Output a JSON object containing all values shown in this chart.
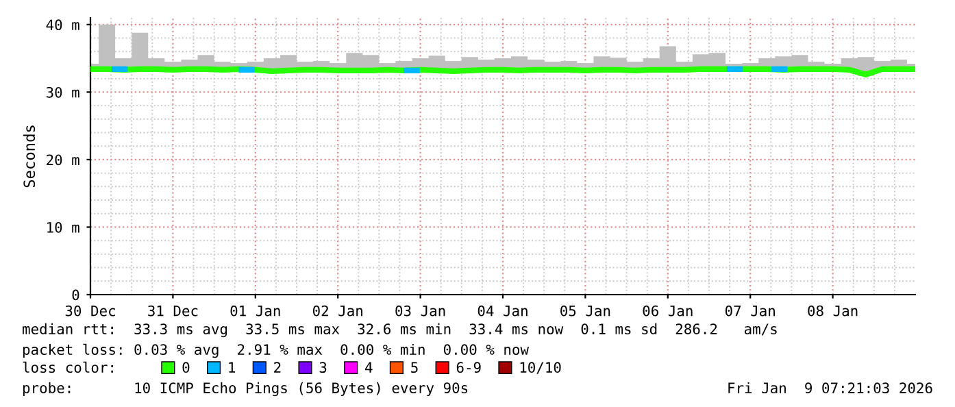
{
  "chart_data": {
    "type": "line",
    "ylabel": "Seconds",
    "xlim": [
      "2025-12-30T00:00",
      "2026-01-09T00:00"
    ],
    "xticks": [
      {
        "value": "2025-12-30T00:00",
        "label": "30 Dec"
      },
      {
        "value": "2025-12-31T00:00",
        "label": "31 Dec"
      },
      {
        "value": "2026-01-01T00:00",
        "label": "01 Jan"
      },
      {
        "value": "2026-01-02T00:00",
        "label": "02 Jan"
      },
      {
        "value": "2026-01-03T00:00",
        "label": "03 Jan"
      },
      {
        "value": "2026-01-04T00:00",
        "label": "04 Jan"
      },
      {
        "value": "2026-01-05T00:00",
        "label": "05 Jan"
      },
      {
        "value": "2026-01-06T00:00",
        "label": "06 Jan"
      },
      {
        "value": "2026-01-07T00:00",
        "label": "07 Jan"
      },
      {
        "value": "2026-01-08T00:00",
        "label": "08 Jan"
      }
    ],
    "ylim": [
      0,
      41
    ],
    "yticks": [
      0,
      {
        "value": 10,
        "label": "10 m"
      },
      {
        "value": 20,
        "label": "20 m"
      },
      {
        "value": 30,
        "label": "30 m"
      },
      {
        "value": 40,
        "label": "40 m"
      }
    ],
    "grid": true,
    "legend": "bottom",
    "legend_title": "loss color:",
    "line_style": "solid",
    "marker": "none",
    "series": [
      {
        "name": "0",
        "color": "#26ff00",
        "x": [
          "2025-12-30T00:00",
          "2025-12-30T04:48",
          "2025-12-30T09:36",
          "2025-12-30T14:24",
          "2025-12-30T19:12",
          "2025-12-31T00:00",
          "2025-12-31T04:48",
          "2025-12-31T09:36",
          "2025-12-31T14:24",
          "2025-12-31T19:12",
          "2026-01-01T00:00",
          "2026-01-01T04:48",
          "2026-01-01T09:36",
          "2026-01-01T14:24",
          "2026-01-01T19:12",
          "2026-01-02T00:00",
          "2026-01-02T04:48",
          "2026-01-02T09:36",
          "2026-01-02T14:24",
          "2026-01-02T19:12",
          "2026-01-03T00:00",
          "2026-01-03T04:48",
          "2026-01-03T09:36",
          "2026-01-03T14:24",
          "2026-01-03T19:12",
          "2026-01-04T00:00",
          "2026-01-04T04:48",
          "2026-01-04T09:36",
          "2026-01-04T14:24",
          "2026-01-04T19:12",
          "2026-01-05T00:00",
          "2026-01-05T04:48",
          "2026-01-05T09:36",
          "2026-01-05T14:24",
          "2026-01-05T19:12",
          "2026-01-06T00:00",
          "2026-01-06T04:48",
          "2026-01-06T09:36",
          "2026-01-06T14:24",
          "2026-01-06T19:12",
          "2026-01-07T00:00",
          "2026-01-07T04:48",
          "2026-01-07T09:36",
          "2026-01-07T14:24",
          "2026-01-07T19:12",
          "2026-01-08T00:00",
          "2026-01-08T04:48",
          "2026-01-08T09:36",
          "2026-01-08T14:24",
          "2026-01-08T19:12",
          "2026-01-09T00:00"
        ],
        "values": [
          33.4,
          33.4,
          33.3,
          33.4,
          33.4,
          33.3,
          33.4,
          33.4,
          33.3,
          33.4,
          33.3,
          33.1,
          33.2,
          33.3,
          33.3,
          33.2,
          33.2,
          33.2,
          33.3,
          33.2,
          33.3,
          33.2,
          33.1,
          33.2,
          33.3,
          33.3,
          33.2,
          33.3,
          33.3,
          33.3,
          33.2,
          33.3,
          33.3,
          33.2,
          33.3,
          33.3,
          33.3,
          33.4,
          33.4,
          33.4,
          33.4,
          33.4,
          33.3,
          33.4,
          33.4,
          33.4,
          33.3,
          32.6,
          33.4,
          33.4,
          33.4
        ],
        "upper": [
          34.2,
          40.0,
          35.0,
          38.8,
          35.0,
          34.5,
          34.8,
          35.5,
          34.5,
          34.3,
          34.5,
          35.0,
          35.5,
          34.5,
          34.6,
          34.3,
          35.8,
          35.5,
          34.3,
          34.6,
          35.0,
          35.4,
          34.6,
          35.2,
          34.8,
          35.0,
          35.3,
          34.8,
          34.5,
          34.6,
          34.3,
          35.3,
          35.1,
          34.5,
          35.0,
          36.8,
          34.5,
          35.6,
          35.8,
          34.2,
          34.3,
          35.0,
          35.3,
          35.5,
          34.5,
          34.2,
          35.0,
          35.2,
          34.6,
          34.8,
          34.2
        ],
        "lower": [
          33.0,
          33.0,
          33.0,
          33.0,
          33.0,
          33.0,
          33.0,
          33.0,
          33.0,
          33.0,
          33.0,
          32.9,
          32.9,
          33.0,
          33.0,
          32.9,
          32.9,
          32.9,
          33.0,
          32.9,
          33.0,
          32.9,
          32.9,
          32.9,
          33.0,
          33.0,
          32.9,
          33.0,
          33.0,
          33.0,
          32.9,
          33.0,
          33.0,
          32.9,
          33.0,
          33.0,
          33.0,
          33.1,
          33.1,
          33.1,
          33.1,
          33.1,
          33.0,
          33.1,
          33.1,
          33.1,
          33.0,
          32.4,
          33.1,
          33.1,
          33.1
        ]
      },
      {
        "name": "1",
        "color": "#00b8ff",
        "x": [
          "2025-12-30T07:00",
          "2025-12-30T10:00",
          "2025-12-31T08:00",
          "2025-12-31T20:00",
          "2025-12-31T23:00",
          "2026-01-01T08:00",
          "2026-01-02T20:00",
          "2026-01-02T23:00",
          "2026-01-05T00:00",
          "2026-01-06T18:00",
          "2026-01-06T21:00",
          "2026-01-07T01:00",
          "2026-01-07T07:00",
          "2026-01-07T10:00"
        ],
        "values": [
          33.4,
          33.4,
          null,
          33.3,
          33.3,
          null,
          33.2,
          33.2,
          null,
          33.4,
          33.4,
          null,
          33.4,
          33.4
        ]
      },
      {
        "name": "2",
        "color": "#0059ff"
      },
      {
        "name": "3",
        "color": "#7e00ff"
      },
      {
        "name": "4",
        "color": "#ff00ff"
      },
      {
        "name": "5",
        "color": "#ff5500"
      },
      {
        "name": "6-9",
        "color": "#ff0000"
      },
      {
        "name": "10/10",
        "color": "#a10000"
      }
    ],
    "annotations": [
      "median rtt:  33.3 ms avg  33.5 ms max  32.6 ms min  33.4 ms now  0.1 ms sd  286.2   am/s",
      "packet loss: 0.03 % avg  2.91 % max  0.00 % min  0.00 % now",
      "probe:       10 ICMP Echo Pings (56 Bytes) every 90s",
      "Fri Jan  9 07:21:03 2026"
    ]
  }
}
